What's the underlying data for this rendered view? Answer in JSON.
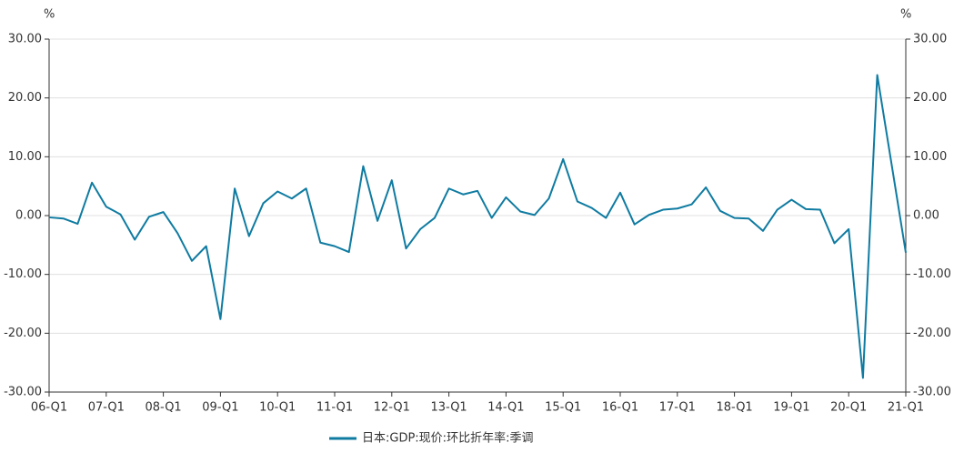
{
  "chart_data": {
    "type": "line",
    "y_label": "%",
    "y2_label": "%",
    "categories": [
      "06-Q1",
      null,
      null,
      null,
      "07-Q1",
      null,
      null,
      null,
      "08-Q1",
      null,
      null,
      null,
      "09-Q1",
      null,
      null,
      null,
      "10-Q1",
      null,
      null,
      null,
      "11-Q1",
      null,
      null,
      null,
      "12-Q1",
      null,
      null,
      null,
      "13-Q1",
      null,
      null,
      null,
      "14-Q1",
      null,
      null,
      null,
      "15-Q1",
      null,
      null,
      null,
      "16-Q1",
      null,
      null,
      null,
      "17-Q1",
      null,
      null,
      null,
      "18-Q1",
      null,
      null,
      null,
      "19-Q1",
      null,
      null,
      null,
      "20-Q1",
      null,
      null,
      null,
      "21-Q1"
    ],
    "series": [
      {
        "name": "日本:GDP:现价:环比折年率:季调",
        "color": "#0f7ba1",
        "values": [
          -0.3,
          -0.5,
          -1.4,
          5.6,
          1.5,
          0.2,
          -4.1,
          -0.2,
          0.6,
          -3.0,
          -7.7,
          -5.2,
          -17.6,
          4.6,
          -3.5,
          2.1,
          4.1,
          2.9,
          4.6,
          -4.6,
          -5.2,
          -6.2,
          8.4,
          -0.9,
          6.0,
          -5.6,
          -2.3,
          -0.4,
          4.6,
          3.6,
          4.2,
          -0.4,
          3.1,
          0.7,
          0.1,
          2.9,
          9.6,
          2.4,
          1.3,
          -0.4,
          3.9,
          -1.5,
          0.1,
          1.0,
          1.2,
          1.9,
          4.8,
          0.8,
          -0.4,
          -0.5,
          -2.6,
          1.0,
          2.7,
          1.1,
          1.0,
          -4.7,
          -2.3,
          -27.6,
          23.9,
          8.8,
          -6.3
        ]
      }
    ],
    "ylim": [
      -30,
      30
    ],
    "yticks": [
      {
        "value": -30,
        "label": "-30.00"
      },
      {
        "value": -20,
        "label": "-20.00"
      },
      {
        "value": -10,
        "label": "-10.00"
      },
      {
        "value": 0,
        "label": "0.00"
      },
      {
        "value": 10,
        "label": "10.00"
      },
      {
        "value": 20,
        "label": "20.00"
      },
      {
        "value": 30,
        "label": "30.00"
      }
    ],
    "y2lim": [
      -30,
      30
    ],
    "y2ticks": [
      {
        "value": -30,
        "label": "-30.00"
      },
      {
        "value": -20,
        "label": "-20.00"
      },
      {
        "value": -10,
        "label": "-10.00"
      },
      {
        "value": 0,
        "label": "0.00"
      },
      {
        "value": 10,
        "label": "10.00"
      },
      {
        "value": 20,
        "label": "20.00"
      },
      {
        "value": 30,
        "label": "30.00"
      }
    ],
    "grid": true
  }
}
